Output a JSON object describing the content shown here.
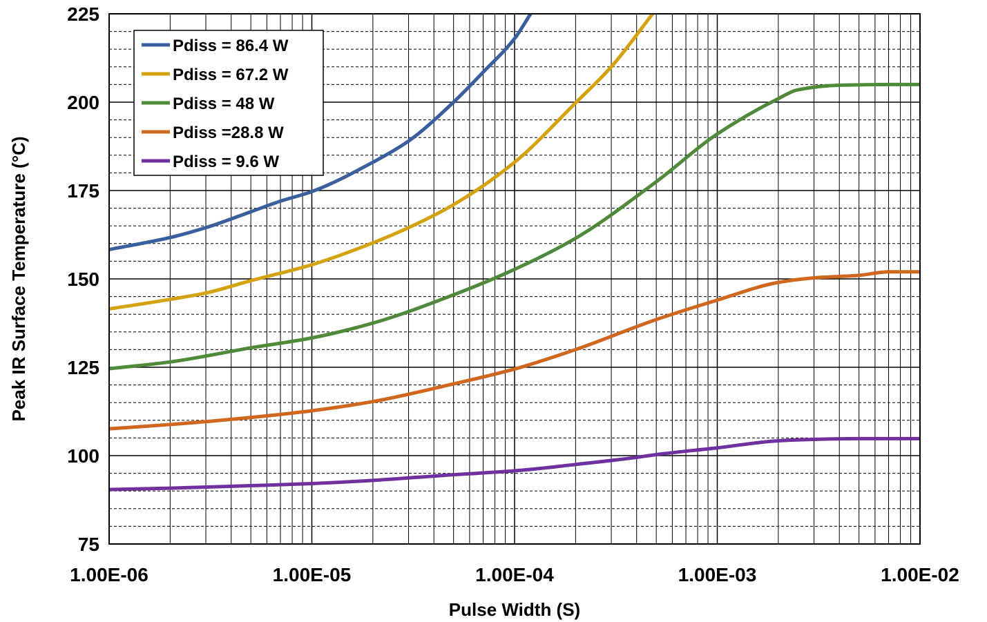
{
  "chart_data": {
    "type": "line",
    "title": "",
    "xlabel": "Pulse Width (S)",
    "ylabel": "Peak IR Surface Temperature (°C)",
    "x_scale": "log",
    "xlim": [
      1e-06,
      0.01
    ],
    "ylim": [
      75,
      225
    ],
    "x_ticks": [
      1e-06,
      1e-05,
      0.0001,
      0.001,
      0.01
    ],
    "x_tick_labels": [
      "1.00E-06",
      "1.00E-05",
      "1.00E-04",
      "1.00E-03",
      "1.00E-02"
    ],
    "y_ticks": [
      75,
      100,
      125,
      150,
      175,
      200,
      225
    ],
    "y_tick_labels": [
      "75",
      "100",
      "125",
      "150",
      "175",
      "200",
      "225"
    ],
    "y_minor_step": 5,
    "grid": true,
    "legend_position": "top-left",
    "series": [
      {
        "name": "Pdiss = 86.4 W",
        "color": "#3A5F9E",
        "x": [
          1e-06,
          2e-06,
          3e-06,
          5e-06,
          7e-06,
          1e-05,
          2e-05,
          3e-05,
          5e-05,
          7e-05,
          0.0001,
          0.00012
        ],
        "y": [
          158.3,
          161.7,
          164.5,
          169,
          172,
          174.7,
          183,
          189,
          200,
          208.5,
          218,
          225
        ]
      },
      {
        "name": "Pdiss = 67.2 W",
        "color": "#D4A20F",
        "x": [
          1e-06,
          2e-06,
          3e-06,
          5e-06,
          1e-05,
          2e-05,
          3e-05,
          5e-05,
          0.0001,
          0.0002,
          0.0003,
          0.00048
        ],
        "y": [
          141.5,
          144.2,
          146,
          149.5,
          154,
          160.2,
          164.5,
          171,
          183,
          199.8,
          210,
          225
        ]
      },
      {
        "name": "Pdiss = 48 W",
        "color": "#4E8A3A",
        "x": [
          1e-06,
          2e-06,
          5e-06,
          1e-05,
          2e-05,
          5e-05,
          0.0001,
          0.0002,
          0.0005,
          0.001,
          0.002,
          0.0025,
          0.004,
          0.007,
          0.01
        ],
        "y": [
          124.6,
          126.5,
          130.5,
          133.3,
          137.5,
          145.5,
          152.7,
          161.5,
          177.5,
          191,
          201,
          203.5,
          204.8,
          205,
          205
        ]
      },
      {
        "name": "Pdiss =28.8 W",
        "color": "#D0671F",
        "x": [
          1e-06,
          2e-06,
          5e-06,
          1e-05,
          2e-05,
          5e-05,
          0.0001,
          0.0002,
          0.0005,
          0.001,
          0.002,
          0.003,
          0.005,
          0.007,
          0.01
        ],
        "y": [
          107.6,
          108.8,
          110.8,
          112.7,
          115.3,
          120.3,
          124.5,
          130,
          138.5,
          144,
          149,
          150.3,
          151,
          152,
          152
        ]
      },
      {
        "name": "Pdiss = 9.6 W",
        "color": "#7030A0",
        "x": [
          1e-06,
          2e-06,
          5e-06,
          1e-05,
          2e-05,
          5e-05,
          0.0001,
          0.0002,
          0.0004,
          0.0005,
          0.001,
          0.002,
          0.003,
          0.005,
          0.01
        ],
        "y": [
          90.4,
          90.8,
          91.5,
          92.1,
          93,
          94.6,
          95.7,
          97.5,
          99.5,
          100.3,
          102.2,
          104.2,
          104.6,
          104.8,
          104.8
        ]
      }
    ]
  }
}
